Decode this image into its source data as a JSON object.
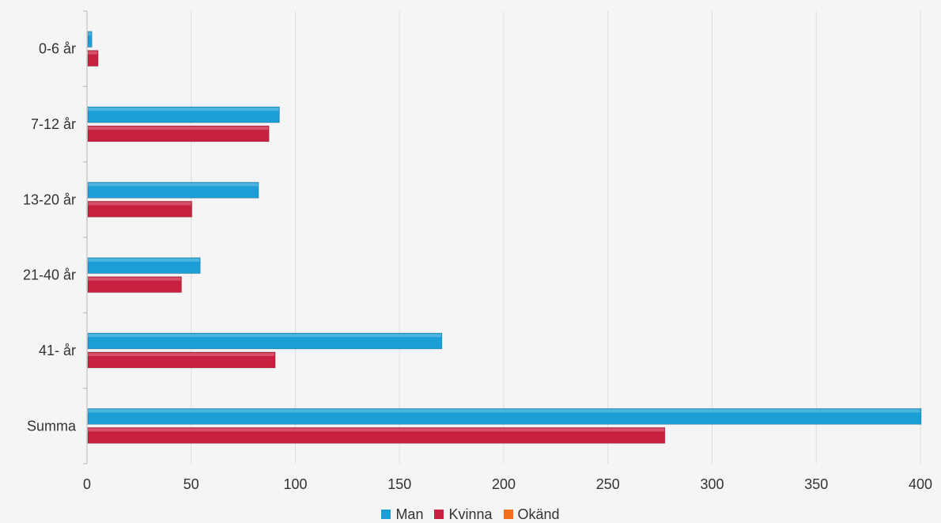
{
  "chart_data": {
    "type": "bar",
    "orientation": "horizontal",
    "categories": [
      "0-6 år",
      "7-12 år",
      "13-20 år",
      "21-40 år",
      "41- år",
      "Summa"
    ],
    "series": [
      {
        "name": "Man",
        "color": "#1b9fd6",
        "values": [
          2,
          92,
          82,
          54,
          170,
          400
        ]
      },
      {
        "name": "Kvinna",
        "color": "#c8203f",
        "values": [
          5,
          87,
          50,
          45,
          90,
          277
        ]
      },
      {
        "name": "Okänd",
        "color": "#f2701d",
        "values": [
          0,
          0,
          0,
          0,
          0,
          0
        ]
      }
    ],
    "xlim": [
      0,
      400
    ],
    "xticks": [
      0,
      50,
      100,
      150,
      200,
      250,
      300,
      350,
      400
    ],
    "grid": true,
    "legend_position": "bottom"
  }
}
